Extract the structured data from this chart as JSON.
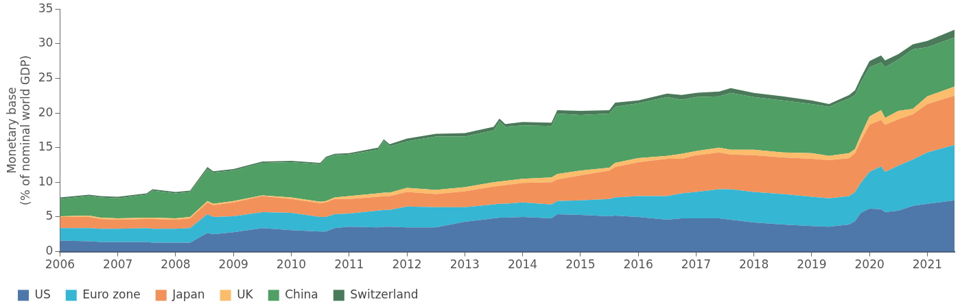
{
  "chart_data": {
    "type": "area",
    "stacked": true,
    "ylabel": "Monetary base\n(% of nominal world GDP)",
    "x": [
      2006.0,
      2006.5,
      2006.7,
      2007.0,
      2007.5,
      2007.6,
      2008.0,
      2008.25,
      2008.55,
      2008.65,
      2009.0,
      2009.5,
      2010.0,
      2010.5,
      2010.6,
      2010.75,
      2011.0,
      2011.5,
      2011.6,
      2011.7,
      2012.0,
      2012.5,
      2013.0,
      2013.5,
      2013.6,
      2013.7,
      2014.0,
      2014.5,
      2014.6,
      2015.0,
      2015.5,
      2015.6,
      2016.0,
      2016.5,
      2016.75,
      2017.0,
      2017.4,
      2017.6,
      2018.0,
      2018.5,
      2019.0,
      2019.3,
      2019.65,
      2019.75,
      2019.85,
      2020.0,
      2020.2,
      2020.27,
      2020.5,
      2020.75,
      2021.0,
      2021.47
    ],
    "series": [
      {
        "name": "US",
        "color": "#4f78aa",
        "values": [
          1.6,
          1.5,
          1.4,
          1.4,
          1.4,
          1.3,
          1.3,
          1.3,
          2.7,
          2.5,
          2.8,
          3.4,
          3.1,
          2.9,
          2.9,
          3.4,
          3.6,
          3.5,
          3.6,
          3.6,
          3.5,
          3.5,
          4.3,
          4.8,
          4.9,
          4.9,
          5.0,
          4.8,
          5.4,
          5.3,
          5.1,
          5.2,
          5.0,
          4.6,
          4.8,
          4.8,
          4.8,
          4.6,
          4.2,
          3.9,
          3.7,
          3.6,
          3.9,
          4.4,
          5.6,
          6.2,
          6.1,
          5.7,
          5.9,
          6.6,
          6.9,
          7.4
        ]
      },
      {
        "name": "Euro zone",
        "color": "#35b6d3",
        "values": [
          1.8,
          1.9,
          1.9,
          1.9,
          2.0,
          2.0,
          2.0,
          2.1,
          2.7,
          2.5,
          2.3,
          2.3,
          2.5,
          2.1,
          2.1,
          2.0,
          1.9,
          2.4,
          2.4,
          2.4,
          3.0,
          2.9,
          2.1,
          2.0,
          2.0,
          2.0,
          2.1,
          2.0,
          1.9,
          2.1,
          2.5,
          2.6,
          3.0,
          3.4,
          3.6,
          3.8,
          4.2,
          4.4,
          4.4,
          4.4,
          4.2,
          4.1,
          4.1,
          4.2,
          4.3,
          5.3,
          6.2,
          5.8,
          6.5,
          6.7,
          7.4,
          8.0
        ]
      },
      {
        "name": "Japan",
        "color": "#f2925a",
        "values": [
          1.6,
          1.6,
          1.4,
          1.3,
          1.3,
          1.4,
          1.3,
          1.4,
          1.7,
          1.7,
          2.0,
          2.3,
          2.0,
          2.0,
          2.1,
          2.2,
          2.1,
          2.0,
          2.0,
          2.0,
          2.1,
          1.9,
          2.3,
          2.6,
          2.6,
          2.7,
          2.8,
          3.2,
          3.1,
          3.6,
          4.1,
          4.4,
          4.9,
          5.4,
          5.0,
          5.3,
          5.3,
          5.0,
          5.3,
          5.3,
          5.5,
          5.5,
          5.5,
          5.6,
          6.1,
          6.8,
          6.7,
          6.8,
          6.7,
          6.5,
          7.0,
          7.1
        ]
      },
      {
        "name": "UK",
        "color": "#fbbd6b",
        "values": [
          0.1,
          0.2,
          0.2,
          0.2,
          0.2,
          0.2,
          0.2,
          0.2,
          0.2,
          0.2,
          0.2,
          0.1,
          0.2,
          0.2,
          0.2,
          0.2,
          0.4,
          0.5,
          0.5,
          0.5,
          0.6,
          0.6,
          0.6,
          0.6,
          0.6,
          0.6,
          0.6,
          0.7,
          0.8,
          0.7,
          0.4,
          0.6,
          0.6,
          0.4,
          0.7,
          0.6,
          0.7,
          0.7,
          0.8,
          0.7,
          0.8,
          0.6,
          0.7,
          0.6,
          0.8,
          1.2,
          1.4,
          1.0,
          1.2,
          0.8,
          1.1,
          1.3
        ]
      },
      {
        "name": "China",
        "color": "#50a065",
        "values": [
          2.5,
          2.8,
          2.9,
          2.9,
          3.3,
          3.9,
          3.6,
          3.6,
          4.6,
          4.5,
          4.4,
          4.7,
          5.1,
          5.4,
          6.2,
          6.1,
          6.0,
          6.3,
          7.5,
          6.7,
          6.7,
          7.7,
          7.3,
          7.5,
          8.7,
          7.8,
          7.7,
          7.4,
          8.7,
          8.0,
          7.8,
          8.1,
          7.9,
          8.5,
          7.8,
          7.8,
          7.4,
          8.2,
          7.6,
          7.5,
          7.1,
          7.1,
          7.9,
          7.8,
          7.6,
          7.1,
          6.9,
          7.3,
          7.4,
          8.6,
          7.1,
          7.1
        ]
      },
      {
        "name": "Switzerland",
        "color": "#4a7a5a",
        "values": [
          0.2,
          0.2,
          0.2,
          0.2,
          0.2,
          0.2,
          0.2,
          0.2,
          0.3,
          0.2,
          0.2,
          0.2,
          0.2,
          0.2,
          0.2,
          0.2,
          0.2,
          0.3,
          0.2,
          0.3,
          0.4,
          0.4,
          0.5,
          0.5,
          0.4,
          0.4,
          0.5,
          0.5,
          0.5,
          0.6,
          0.5,
          0.6,
          0.4,
          0.5,
          0.7,
          0.6,
          0.7,
          0.7,
          0.6,
          0.6,
          0.5,
          0.4,
          0.5,
          0.7,
          0.7,
          0.9,
          1.0,
          1.0,
          0.8,
          0.7,
          0.9,
          1.1
        ]
      }
    ],
    "xlim": [
      2006,
      2021.47
    ],
    "xticks": [
      2006,
      2007,
      2008,
      2009,
      2010,
      2011,
      2012,
      2013,
      2014,
      2015,
      2016,
      2017,
      2018,
      2019,
      2020,
      2021
    ],
    "ylim": [
      0,
      35
    ],
    "yticks": [
      0,
      5,
      10,
      15,
      20,
      25,
      30,
      35
    ],
    "grid": false,
    "legend": "bottom left"
  }
}
